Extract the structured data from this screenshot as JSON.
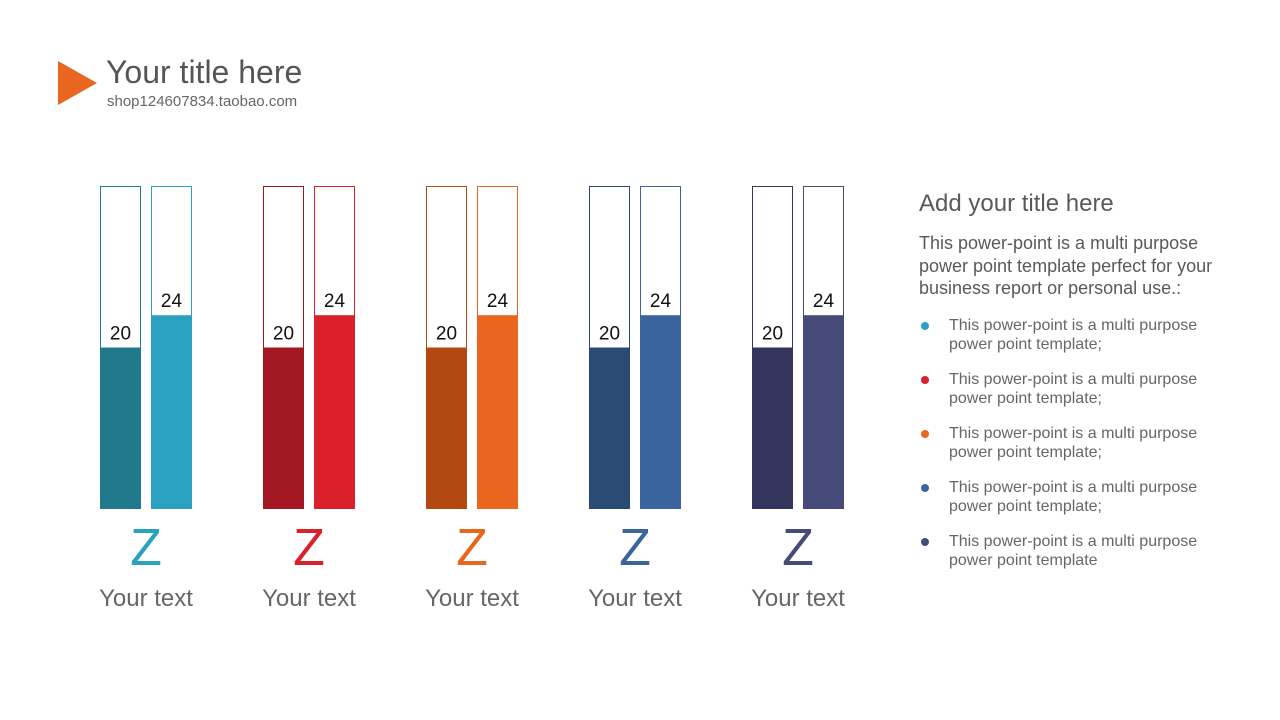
{
  "header": {
    "title": "Your title here",
    "subtitle": "shop124607834.taobao.com",
    "icon": "play-triangle-icon",
    "icon_color": "#e8661f"
  },
  "chart_data": {
    "type": "bar",
    "ylim": [
      0,
      40
    ],
    "groups": [
      {
        "letter": "Z",
        "label": "Your text",
        "label_color": "#2aa1bf",
        "bars": [
          {
            "value": 20,
            "color": "#217a8c"
          },
          {
            "value": 24,
            "color": "#2aa1bf"
          }
        ]
      },
      {
        "letter": "Z",
        "label": "Your text",
        "label_color": "#da202b",
        "bars": [
          {
            "value": 20,
            "color": "#a21722"
          },
          {
            "value": 24,
            "color": "#da202b"
          }
        ]
      },
      {
        "letter": "Z",
        "label": "Your text",
        "label_color": "#e8661f",
        "bars": [
          {
            "value": 20,
            "color": "#b34912"
          },
          {
            "value": 24,
            "color": "#e8661f"
          }
        ]
      },
      {
        "letter": "Z",
        "label": "Your text",
        "label_color": "#3a649c",
        "bars": [
          {
            "value": 20,
            "color": "#2a4973"
          },
          {
            "value": 24,
            "color": "#3a649c"
          }
        ]
      },
      {
        "letter": "Z",
        "label": "Your text",
        "label_color": "#464a78",
        "bars": [
          {
            "value": 20,
            "color": "#33355a"
          },
          {
            "value": 24,
            "color": "#464a78"
          }
        ]
      }
    ]
  },
  "side": {
    "title": "Add your title here",
    "intro": "This power-point is a multi purpose power point template perfect for your business report or personal use.:",
    "bullets": [
      {
        "text": "This power-point is a multi purpose power point template;",
        "color": "#2aa1bf"
      },
      {
        "text": "This power-point is a multi purpose power point template;",
        "color": "#da202b"
      },
      {
        "text": "This power-point is a multi purpose power point template;",
        "color": "#e8661f"
      },
      {
        "text": "This power-point is a multi purpose power point template;",
        "color": "#3a649c"
      },
      {
        "text": "This power-point is a multi purpose power point template",
        "color": "#464a78"
      }
    ]
  }
}
